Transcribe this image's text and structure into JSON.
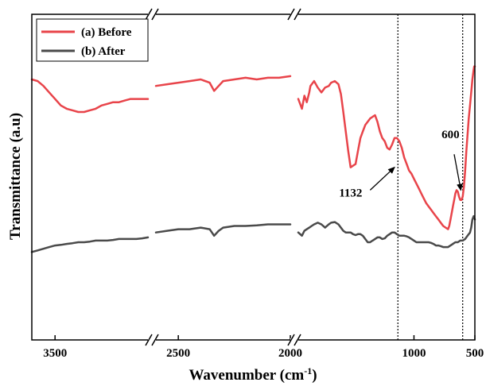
{
  "chart_data": {
    "type": "line",
    "xlabel": "Wavenumber (cm",
    "xlabel_sup": "-1",
    "xlabel_end": ")",
    "ylabel": "Transmittance (a.u)",
    "x_reversed": true,
    "x_breaks": [
      [
        2700,
        2600
      ],
      [
        2000,
        1950
      ]
    ],
    "x_ticks": [
      {
        "value": 3500,
        "label": "3500"
      },
      {
        "value": 2500,
        "label": "2500"
      },
      {
        "value": 2000,
        "label": "2000"
      },
      {
        "value": 1000,
        "label": "1000"
      },
      {
        "value": 500,
        "label": "500"
      }
    ],
    "y_ticks_shown": false,
    "legend_position": "top-left",
    "series": [
      {
        "name": "(a) Before",
        "color": "#e8444a",
        "segments": [
          [
            [
              3700,
              0.8
            ],
            [
              3650,
              0.795
            ],
            [
              3600,
              0.78
            ],
            [
              3550,
              0.76
            ],
            [
              3500,
              0.74
            ],
            [
              3450,
              0.72
            ],
            [
              3400,
              0.71
            ],
            [
              3350,
              0.705
            ],
            [
              3300,
              0.7
            ],
            [
              3250,
              0.7
            ],
            [
              3200,
              0.705
            ],
            [
              3150,
              0.71
            ],
            [
              3100,
              0.72
            ],
            [
              3050,
              0.725
            ],
            [
              3000,
              0.73
            ],
            [
              2950,
              0.73
            ],
            [
              2900,
              0.735
            ],
            [
              2850,
              0.74
            ],
            [
              2800,
              0.74
            ],
            [
              2750,
              0.74
            ],
            [
              2700,
              0.74
            ]
          ],
          [
            [
              2600,
              0.78
            ],
            [
              2550,
              0.785
            ],
            [
              2500,
              0.79
            ],
            [
              2450,
              0.795
            ],
            [
              2400,
              0.8
            ],
            [
              2360,
              0.79
            ],
            [
              2340,
              0.765
            ],
            [
              2320,
              0.78
            ],
            [
              2300,
              0.795
            ],
            [
              2250,
              0.8
            ],
            [
              2200,
              0.805
            ],
            [
              2150,
              0.8
            ],
            [
              2100,
              0.805
            ],
            [
              2050,
              0.805
            ],
            [
              2000,
              0.81
            ]
          ],
          [
            [
              1950,
              0.74
            ],
            [
              1920,
              0.71
            ],
            [
              1900,
              0.75
            ],
            [
              1880,
              0.73
            ],
            [
              1860,
              0.76
            ],
            [
              1850,
              0.78
            ],
            [
              1820,
              0.795
            ],
            [
              1790,
              0.775
            ],
            [
              1760,
              0.76
            ],
            [
              1730,
              0.775
            ],
            [
              1700,
              0.78
            ],
            [
              1680,
              0.79
            ],
            [
              1650,
              0.795
            ],
            [
              1620,
              0.785
            ],
            [
              1600,
              0.755
            ],
            [
              1580,
              0.7
            ],
            [
              1560,
              0.64
            ],
            [
              1540,
              0.58
            ],
            [
              1520,
              0.53
            ],
            [
              1500,
              0.535
            ],
            [
              1480,
              0.54
            ],
            [
              1460,
              0.58
            ],
            [
              1440,
              0.62
            ],
            [
              1420,
              0.64
            ],
            [
              1400,
              0.66
            ],
            [
              1380,
              0.67
            ],
            [
              1360,
              0.68
            ],
            [
              1340,
              0.685
            ],
            [
              1320,
              0.69
            ],
            [
              1300,
              0.67
            ],
            [
              1280,
              0.64
            ],
            [
              1260,
              0.62
            ],
            [
              1240,
              0.61
            ],
            [
              1220,
              0.59
            ],
            [
              1200,
              0.585
            ],
            [
              1180,
              0.6
            ],
            [
              1160,
              0.62
            ],
            [
              1140,
              0.62
            ],
            [
              1120,
              0.61
            ],
            [
              1100,
              0.59
            ],
            [
              1080,
              0.56
            ],
            [
              1060,
              0.54
            ],
            [
              1040,
              0.52
            ],
            [
              1020,
              0.51
            ],
            [
              1000,
              0.495
            ],
            [
              980,
              0.48
            ],
            [
              960,
              0.465
            ],
            [
              940,
              0.45
            ],
            [
              920,
              0.435
            ],
            [
              900,
              0.42
            ],
            [
              880,
              0.41
            ],
            [
              860,
              0.4
            ],
            [
              840,
              0.39
            ],
            [
              820,
              0.38
            ],
            [
              800,
              0.37
            ],
            [
              780,
              0.36
            ],
            [
              760,
              0.35
            ],
            [
              740,
              0.345
            ],
            [
              720,
              0.34
            ],
            [
              710,
              0.35
            ],
            [
              700,
              0.37
            ],
            [
              690,
              0.39
            ],
            [
              680,
              0.41
            ],
            [
              670,
              0.43
            ],
            [
              660,
              0.45
            ],
            [
              650,
              0.46
            ],
            [
              640,
              0.455
            ],
            [
              630,
              0.44
            ],
            [
              620,
              0.43
            ],
            [
              610,
              0.43
            ],
            [
              600,
              0.44
            ],
            [
              590,
              0.47
            ],
            [
              580,
              0.52
            ],
            [
              570,
              0.58
            ],
            [
              560,
              0.63
            ],
            [
              550,
              0.68
            ],
            [
              540,
              0.72
            ],
            [
              530,
              0.76
            ],
            [
              520,
              0.8
            ],
            [
              510,
              0.83
            ],
            [
              505,
              0.84
            ],
            [
              500,
              0.84
            ]
          ]
        ]
      },
      {
        "name": "(b) After",
        "color": "#4a4a4a",
        "segments": [
          [
            [
              3700,
              0.27
            ],
            [
              3650,
              0.275
            ],
            [
              3600,
              0.28
            ],
            [
              3550,
              0.285
            ],
            [
              3500,
              0.29
            ],
            [
              3450,
              0.292
            ],
            [
              3400,
              0.295
            ],
            [
              3350,
              0.297
            ],
            [
              3300,
              0.3
            ],
            [
              3250,
              0.3
            ],
            [
              3200,
              0.302
            ],
            [
              3150,
              0.305
            ],
            [
              3100,
              0.305
            ],
            [
              3050,
              0.305
            ],
            [
              3000,
              0.307
            ],
            [
              2950,
              0.31
            ],
            [
              2900,
              0.31
            ],
            [
              2850,
              0.31
            ],
            [
              2800,
              0.31
            ],
            [
              2750,
              0.312
            ],
            [
              2700,
              0.315
            ]
          ],
          [
            [
              2600,
              0.33
            ],
            [
              2550,
              0.335
            ],
            [
              2500,
              0.34
            ],
            [
              2450,
              0.34
            ],
            [
              2400,
              0.345
            ],
            [
              2360,
              0.34
            ],
            [
              2340,
              0.32
            ],
            [
              2320,
              0.335
            ],
            [
              2300,
              0.345
            ],
            [
              2250,
              0.35
            ],
            [
              2200,
              0.35
            ],
            [
              2150,
              0.352
            ],
            [
              2100,
              0.355
            ],
            [
              2050,
              0.355
            ],
            [
              2000,
              0.355
            ]
          ],
          [
            [
              1950,
              0.33
            ],
            [
              1920,
              0.32
            ],
            [
              1900,
              0.335
            ],
            [
              1880,
              0.34
            ],
            [
              1860,
              0.345
            ],
            [
              1840,
              0.35
            ],
            [
              1820,
              0.355
            ],
            [
              1790,
              0.36
            ],
            [
              1760,
              0.355
            ],
            [
              1730,
              0.345
            ],
            [
              1700,
              0.355
            ],
            [
              1680,
              0.36
            ],
            [
              1650,
              0.362
            ],
            [
              1620,
              0.355
            ],
            [
              1600,
              0.345
            ],
            [
              1580,
              0.335
            ],
            [
              1560,
              0.33
            ],
            [
              1540,
              0.33
            ],
            [
              1520,
              0.33
            ],
            [
              1500,
              0.325
            ],
            [
              1480,
              0.322
            ],
            [
              1460,
              0.325
            ],
            [
              1440,
              0.325
            ],
            [
              1420,
              0.32
            ],
            [
              1400,
              0.31
            ],
            [
              1380,
              0.3
            ],
            [
              1360,
              0.3
            ],
            [
              1340,
              0.305
            ],
            [
              1320,
              0.31
            ],
            [
              1300,
              0.315
            ],
            [
              1280,
              0.315
            ],
            [
              1260,
              0.31
            ],
            [
              1240,
              0.312
            ],
            [
              1220,
              0.32
            ],
            [
              1200,
              0.325
            ],
            [
              1180,
              0.33
            ],
            [
              1160,
              0.33
            ],
            [
              1140,
              0.325
            ],
            [
              1120,
              0.32
            ],
            [
              1100,
              0.32
            ],
            [
              1080,
              0.32
            ],
            [
              1060,
              0.318
            ],
            [
              1040,
              0.315
            ],
            [
              1020,
              0.31
            ],
            [
              1000,
              0.305
            ],
            [
              980,
              0.3
            ],
            [
              960,
              0.3
            ],
            [
              940,
              0.3
            ],
            [
              920,
              0.3
            ],
            [
              900,
              0.3
            ],
            [
              880,
              0.3
            ],
            [
              860,
              0.298
            ],
            [
              840,
              0.295
            ],
            [
              820,
              0.29
            ],
            [
              800,
              0.29
            ],
            [
              780,
              0.288
            ],
            [
              760,
              0.285
            ],
            [
              740,
              0.285
            ],
            [
              720,
              0.285
            ],
            [
              700,
              0.29
            ],
            [
              680,
              0.295
            ],
            [
              660,
              0.3
            ],
            [
              640,
              0.3
            ],
            [
              620,
              0.305
            ],
            [
              600,
              0.305
            ],
            [
              580,
              0.31
            ],
            [
              560,
              0.32
            ],
            [
              540,
              0.33
            ],
            [
              530,
              0.345
            ],
            [
              520,
              0.37
            ],
            [
              510,
              0.38
            ],
            [
              505,
              0.375
            ],
            [
              500,
              0.37
            ]
          ]
        ]
      }
    ],
    "reference_lines": [
      1132,
      600
    ],
    "annotations": [
      {
        "text": "1132",
        "label_x": 1520,
        "label_y": 0.44,
        "arrow_from": [
          1360,
          0.46
        ],
        "arrow_to": [
          1160,
          0.53
        ]
      },
      {
        "text": "600",
        "label_x": 700,
        "label_y": 0.62,
        "arrow_from": [
          670,
          0.57
        ],
        "arrow_to": [
          615,
          0.46
        ]
      }
    ]
  }
}
